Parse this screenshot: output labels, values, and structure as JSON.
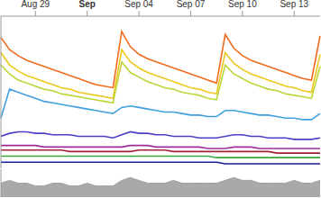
{
  "chart_data": [
    {
      "type": "line",
      "categories": [
        null,
        null,
        null,
        null,
        "Aug 29",
        null,
        null,
        null,
        null,
        null,
        "Sep",
        null,
        null,
        null,
        null,
        null,
        "Sep 04",
        null,
        null,
        null,
        null,
        null,
        "Sep 07",
        null,
        null,
        null,
        null,
        null,
        "Sep 10",
        null,
        null,
        null,
        null,
        null,
        "Sep 13",
        null,
        null,
        null
      ],
      "series": [
        {
          "color": "#f26b1d",
          "values": [
            86,
            78,
            74,
            71,
            69,
            67,
            65,
            63,
            61,
            59,
            57,
            55,
            54,
            53,
            90,
            80,
            75,
            72,
            70,
            68,
            66,
            64,
            62,
            60,
            58,
            56,
            88,
            79,
            74,
            71,
            69,
            67,
            65,
            63,
            61,
            59,
            58,
            87
          ]
        },
        {
          "color": "#ecc81c",
          "values": [
            76,
            68,
            64,
            61,
            59,
            57,
            55,
            53,
            52,
            50,
            49,
            48,
            47,
            46,
            78,
            70,
            66,
            63,
            61,
            59,
            57,
            55,
            53,
            52,
            50,
            49,
            76,
            69,
            65,
            62,
            60,
            58,
            56,
            54,
            53,
            51,
            50,
            75
          ]
        },
        {
          "color": "#bcd63a",
          "values": [
            68,
            62,
            58,
            56,
            54,
            52,
            51,
            49,
            48,
            47,
            46,
            45,
            44,
            43,
            70,
            63,
            60,
            57,
            55,
            53,
            52,
            50,
            49,
            48,
            46,
            45,
            68,
            62,
            59,
            56,
            54,
            52,
            51,
            49,
            48,
            47,
            46,
            67
          ]
        },
        {
          "color": "#3f9fdf",
          "values": [
            33,
            52,
            50,
            48,
            46,
            44,
            43,
            42,
            41,
            40,
            39,
            38,
            37,
            36,
            40,
            41,
            40,
            39,
            38,
            37,
            37,
            36,
            35,
            35,
            34,
            34,
            38,
            38,
            37,
            36,
            35,
            35,
            34,
            33,
            33,
            32,
            32,
            36
          ]
        },
        {
          "color": "#4a3fc8",
          "values": [
            21,
            23,
            24,
            24,
            23,
            23,
            22,
            22,
            22,
            21,
            21,
            21,
            21,
            20,
            22,
            24,
            23,
            23,
            22,
            22,
            21,
            21,
            21,
            20,
            20,
            20,
            21,
            22,
            22,
            21,
            21,
            20,
            20,
            20,
            19,
            19,
            19,
            20
          ]
        },
        {
          "color": "#9b2d9b",
          "values": [
            15,
            15,
            15,
            15,
            15,
            14,
            14,
            14,
            14,
            14,
            14,
            14,
            14,
            14,
            14,
            15,
            15,
            15,
            14,
            14,
            14,
            14,
            14,
            14,
            13,
            13,
            13,
            14,
            14,
            14,
            13,
            13,
            13,
            13,
            13,
            13,
            13,
            13
          ]
        },
        {
          "color": "#a0203a",
          "values": [
            12,
            12,
            12,
            12,
            12,
            12,
            12,
            12,
            11,
            11,
            11,
            11,
            11,
            11,
            11,
            11,
            12,
            12,
            12,
            12,
            11,
            11,
            11,
            11,
            11,
            11,
            11,
            11,
            11,
            11,
            11,
            11,
            10,
            10,
            10,
            10,
            10,
            10
          ]
        },
        {
          "color": "#3aa63a",
          "values": [
            8,
            8,
            8,
            8,
            8,
            8,
            8,
            8,
            8,
            8,
            8,
            8,
            8,
            8,
            8,
            8,
            8,
            8,
            8,
            8,
            8,
            8,
            8,
            8,
            8,
            7,
            7,
            7,
            7,
            7,
            7,
            7,
            7,
            7,
            7,
            7,
            7,
            7
          ]
        },
        {
          "color": "#1a1a9a",
          "values": [
            4,
            4,
            4,
            4,
            4,
            4,
            4,
            4,
            4,
            4,
            4,
            4,
            4,
            4,
            4,
            4,
            4,
            4,
            4,
            4,
            4,
            4,
            4,
            4,
            4,
            4,
            3,
            3,
            3,
            3,
            3,
            3,
            3,
            3,
            3,
            3,
            3,
            3
          ]
        }
      ],
      "ylim": [
        0,
        100
      ],
      "tick_labels": "x",
      "grid": false
    },
    {
      "type": "area",
      "categories": [
        null,
        null,
        null,
        null,
        null,
        null,
        null,
        null,
        null,
        null,
        null,
        null,
        null,
        null,
        null,
        null,
        null,
        null,
        null,
        null,
        null,
        null,
        null,
        null,
        null,
        null,
        null,
        null,
        null,
        null,
        null,
        null,
        null,
        null,
        null,
        null,
        null,
        null
      ],
      "values": [
        5,
        6,
        5,
        5,
        4,
        4,
        5,
        5,
        4,
        4,
        5,
        4,
        4,
        4,
        6,
        7,
        6,
        5,
        5,
        5,
        6,
        5,
        5,
        5,
        5,
        5,
        6,
        7,
        6,
        6,
        5,
        5,
        5,
        5,
        6,
        5,
        5,
        6
      ],
      "color": "#a0a0a0",
      "ylim": [
        0,
        10
      ],
      "tick_labels": false,
      "grid": false
    }
  ]
}
